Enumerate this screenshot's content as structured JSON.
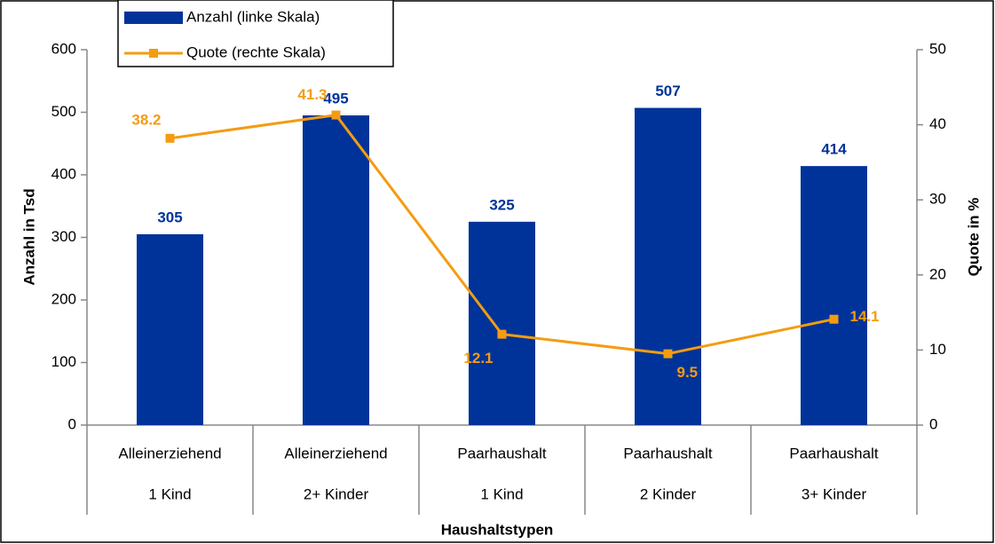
{
  "chart_data": {
    "type": "bar",
    "xlabel": "Haushaltstypen",
    "ylabel": "Anzahl in Tsd",
    "y2label": "Quote in %",
    "categories": [
      [
        "Alleinerziehend",
        "1 Kind"
      ],
      [
        "Alleinerziehend",
        "2+ Kinder"
      ],
      [
        "Paarhaushalt",
        "1 Kind"
      ],
      [
        "Paarhaushalt",
        "2 Kinder"
      ],
      [
        "Paarhaushalt",
        "3+ Kinder"
      ]
    ],
    "series": [
      {
        "name": "Anzahl (linke Skala)",
        "type": "bar",
        "color": "#003399",
        "values": [
          305,
          495,
          325,
          507,
          414
        ]
      },
      {
        "name": "Quote (rechte Skala)",
        "type": "line",
        "axis": "y2",
        "color": "#f39c12",
        "values": [
          38.2,
          41.3,
          12.1,
          9.5,
          14.1
        ]
      }
    ],
    "ylim": [
      0,
      600
    ],
    "yticks": [
      0,
      100,
      200,
      300,
      400,
      500,
      600
    ],
    "y2lim": [
      0,
      50
    ],
    "y2ticks": [
      0,
      10,
      20,
      30,
      40,
      50
    ],
    "grid": false,
    "legend": "top-left"
  }
}
